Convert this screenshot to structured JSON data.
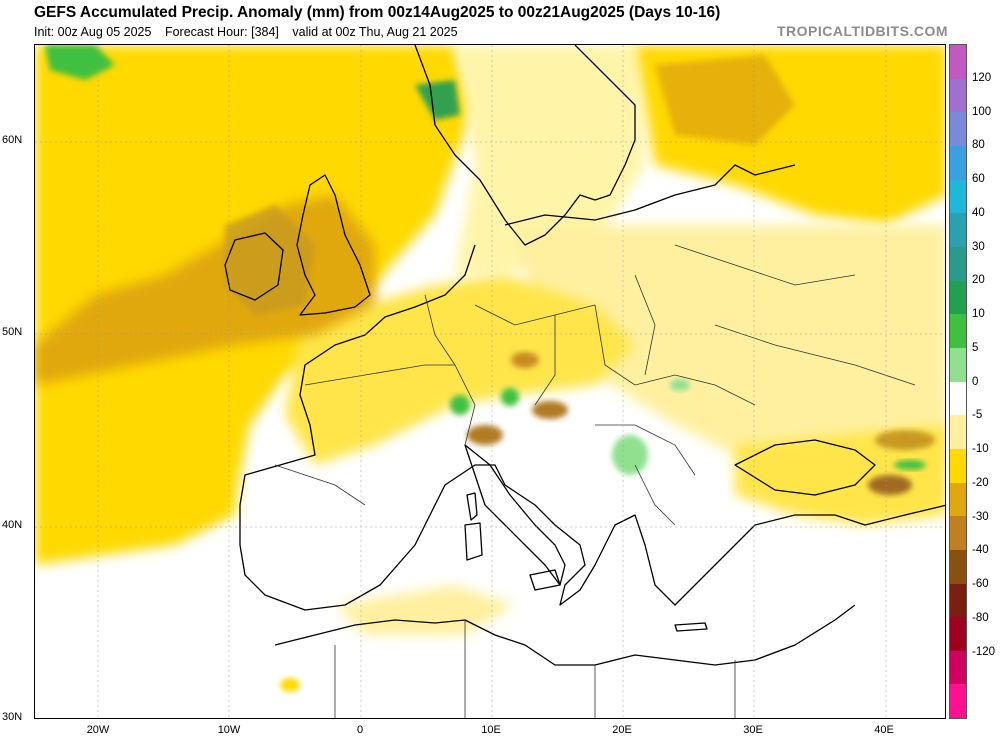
{
  "header": {
    "title": "GEFS Accumulated Precip. Anomaly (mm) from 00z14Aug2025 to 00z21Aug2025 (Days 10-16)",
    "init": "Init: 00z Aug 05 2025",
    "forecast_hour": "Forecast Hour: [384]",
    "valid": "valid at 00z Thu, Aug 21 2025",
    "brand": "TROPICALTIDBITS.COM"
  },
  "map": {
    "lat_labels": [
      "60N",
      "50N",
      "40N",
      "30N"
    ],
    "lon_labels": [
      "20W",
      "10W",
      "0",
      "10E",
      "20E",
      "30E",
      "40E"
    ]
  },
  "legend": {
    "labels": [
      "120",
      "100",
      "80",
      "60",
      "40",
      "30",
      "20",
      "10",
      "5",
      "0",
      "-5",
      "-10",
      "-20",
      "-30",
      "-40",
      "-60",
      "-80",
      "-120"
    ],
    "colors": [
      "#c05ac0",
      "#a070d0",
      "#7a8ad8",
      "#3aa0e0",
      "#20b8d8",
      "#2aa0b0",
      "#2a9a8a",
      "#20a050",
      "#40c040",
      "#90e090",
      "#ffffff",
      "#fff0a0",
      "#ffd900",
      "#e0a810",
      "#c08020",
      "#8a5010",
      "#7a2010",
      "#a00020",
      "#d00060",
      "#ff1090"
    ]
  }
}
